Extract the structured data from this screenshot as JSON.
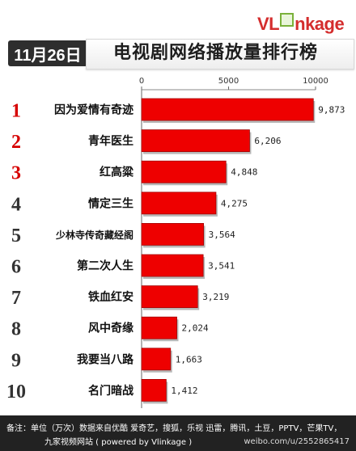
{
  "brand": {
    "logo_text_a": "VL",
    "logo_text_b": "nkage"
  },
  "header": {
    "date": "11月26日",
    "title": "电视剧网络播放量排行榜"
  },
  "chart_data": {
    "type": "bar",
    "orientation": "horizontal",
    "title": "电视剧网络播放量排行榜",
    "xlim": [
      0,
      10000
    ],
    "x_ticks": [
      "0",
      "5000",
      "10000"
    ],
    "ranks": [
      "1",
      "2",
      "3",
      "4",
      "5",
      "6",
      "7",
      "8",
      "9",
      "10"
    ],
    "categories": [
      "因为爱情有奇迹",
      "青年医生",
      "红高粱",
      "情定三生",
      "少林寺传奇藏经阁",
      "第二次人生",
      "铁血红安",
      "风中奇缘",
      "我要当八路",
      "名门暗战"
    ],
    "values": [
      9873,
      6206,
      4848,
      4275,
      3564,
      3541,
      3219,
      2024,
      1663,
      1412
    ],
    "value_labels": [
      "9,873",
      "6,206",
      "4,848",
      "4,275",
      "3,564",
      "3,541",
      "3,219",
      "2,024",
      "1,663",
      "1,412"
    ],
    "bar_color": "#ee0000",
    "grid": false
  },
  "footer": {
    "note_line1": "备注：单位（万次）数据来自优酷 爱奇艺，搜狐，乐视  迅雷，腾讯，土豆，PPTV，芒果TV，",
    "note_line2": "九家视频网站      ( powered by Vlinkage )",
    "watermark": "weibo.com/u/2552865417"
  }
}
